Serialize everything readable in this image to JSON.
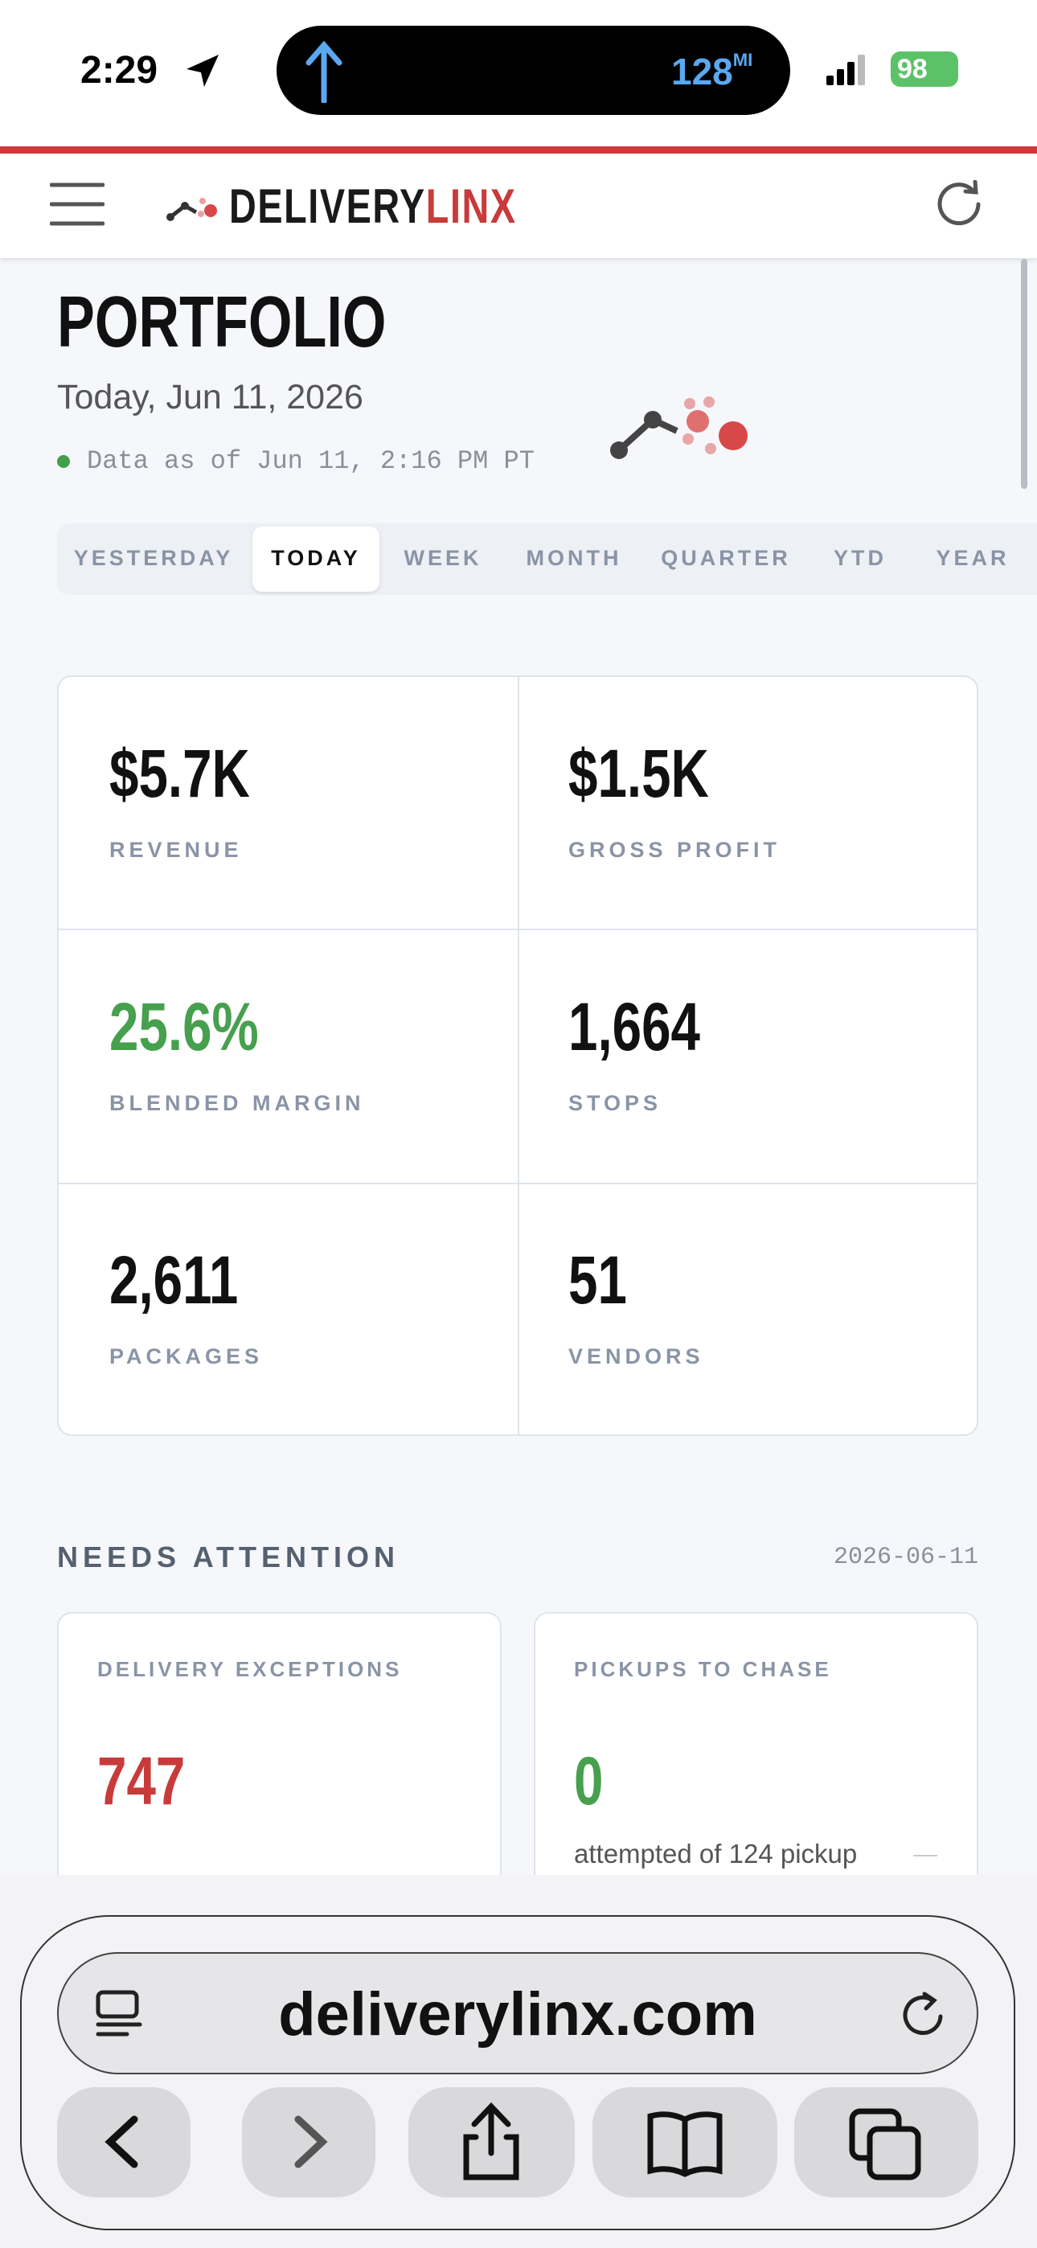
{
  "status_bar": {
    "time": "2:29",
    "distance": "128",
    "distance_unit": "MI",
    "battery": "98"
  },
  "header": {
    "brand_dark": "DELIVERY",
    "brand_red": "LINX"
  },
  "page": {
    "title": "PORTFOLIO",
    "date": "Today, Jun 11, 2026",
    "data_as_of": "Data as of Jun 11, 2:16 PM PT"
  },
  "tabs": {
    "items": [
      "YESTERDAY",
      "TODAY",
      "WEEK",
      "MONTH",
      "QUARTER",
      "YTD",
      "YEAR"
    ],
    "selected_index": 1
  },
  "metrics": [
    {
      "value": "$5.7K",
      "label": "REVENUE",
      "tone": "default"
    },
    {
      "value": "$1.5K",
      "label": "GROSS PROFIT",
      "tone": "default"
    },
    {
      "value": "25.6%",
      "label": "BLENDED MARGIN",
      "tone": "positive"
    },
    {
      "value": "1,664",
      "label": "STOPS",
      "tone": "default"
    },
    {
      "value": "2,611",
      "label": "PACKAGES",
      "tone": "default"
    },
    {
      "value": "51",
      "label": "VENDORS",
      "tone": "default"
    }
  ],
  "attention": {
    "title": "NEEDS ATTENTION",
    "date": "2026-06-11",
    "cards": [
      {
        "label": "DELIVERY EXCEPTIONS",
        "value": "747",
        "tone": "negative"
      },
      {
        "label": "PICKUPS TO CHASE",
        "value": "0",
        "tone": "positive",
        "note": "attempted of 124 pickup"
      }
    ]
  },
  "browser": {
    "url": "deliverylinx.com"
  }
}
